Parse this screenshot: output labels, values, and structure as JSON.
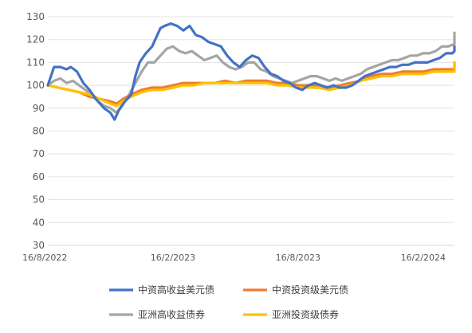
{
  "chart_data": {
    "type": "line",
    "title": "",
    "xlabel": "",
    "ylabel": "",
    "ylim": [
      30,
      130
    ],
    "yticks": [
      30,
      40,
      50,
      60,
      70,
      80,
      90,
      100,
      110,
      120,
      130
    ],
    "ytick_labels": [
      "30",
      "40",
      "50",
      "60",
      "70",
      "80",
      "90",
      "100",
      "110",
      "120",
      "130"
    ],
    "x_range": [
      0,
      19.5
    ],
    "xtick_positions": [
      0,
      6,
      12,
      18
    ],
    "xtick_labels": [
      "16/8/2022",
      "16/2/2023",
      "16/8/2023",
      "16/2/2024"
    ],
    "grid": "horizontal",
    "legend_position": "bottom",
    "series": [
      {
        "name": "中资高收益美元债",
        "color": "#4472C4",
        "points": [
          [
            0,
            100
          ],
          [
            0.15,
            104
          ],
          [
            0.3,
            108
          ],
          [
            0.6,
            108
          ],
          [
            0.9,
            107
          ],
          [
            1.1,
            108
          ],
          [
            1.4,
            106
          ],
          [
            1.7,
            101
          ],
          [
            2.0,
            98
          ],
          [
            2.3,
            94
          ],
          [
            2.7,
            90
          ],
          [
            3.0,
            88
          ],
          [
            3.2,
            85
          ],
          [
            3.4,
            89
          ],
          [
            3.7,
            93
          ],
          [
            4.0,
            96
          ],
          [
            4.2,
            104
          ],
          [
            4.4,
            110
          ],
          [
            4.7,
            114
          ],
          [
            5.0,
            117
          ],
          [
            5.2,
            121
          ],
          [
            5.4,
            125
          ],
          [
            5.6,
            126
          ],
          [
            5.9,
            127
          ],
          [
            6.2,
            126
          ],
          [
            6.5,
            124
          ],
          [
            6.8,
            126
          ],
          [
            7.1,
            122
          ],
          [
            7.4,
            121
          ],
          [
            7.7,
            119
          ],
          [
            8.0,
            118
          ],
          [
            8.3,
            117
          ],
          [
            8.6,
            113
          ],
          [
            8.9,
            110
          ],
          [
            9.2,
            108
          ],
          [
            9.5,
            111
          ],
          [
            9.8,
            113
          ],
          [
            10.1,
            112
          ],
          [
            10.4,
            108
          ],
          [
            10.7,
            105
          ],
          [
            11.0,
            104
          ],
          [
            11.3,
            102
          ],
          [
            11.6,
            101
          ],
          [
            11.9,
            99
          ],
          [
            12.2,
            98
          ],
          [
            12.5,
            100
          ],
          [
            12.8,
            101
          ],
          [
            13.1,
            100
          ],
          [
            13.4,
            99
          ],
          [
            13.7,
            100
          ],
          [
            14.0,
            99
          ],
          [
            14.3,
            99
          ],
          [
            14.6,
            100
          ],
          [
            14.9,
            102
          ],
          [
            15.2,
            104
          ],
          [
            15.5,
            105
          ],
          [
            15.8,
            106
          ],
          [
            16.1,
            107
          ],
          [
            16.4,
            108
          ],
          [
            16.7,
            108
          ],
          [
            17.0,
            109
          ],
          [
            17.3,
            109
          ],
          [
            17.6,
            110
          ],
          [
            17.9,
            110
          ],
          [
            18.2,
            110
          ],
          [
            18.5,
            111
          ],
          [
            18.8,
            112
          ],
          [
            19.1,
            114
          ],
          [
            19.4,
            114
          ],
          [
            19.7,
            115
          ],
          [
            20.0,
            115
          ],
          [
            20.3,
            116
          ],
          [
            20.6,
            116
          ],
          [
            20.9,
            117
          ],
          [
            21.2,
            117
          ],
          [
            21.5,
            117
          ]
        ]
      },
      {
        "name": "中资投资级美元债",
        "color": "#ED7D31",
        "points": [
          [
            0,
            100
          ],
          [
            0.5,
            99
          ],
          [
            1.0,
            98
          ],
          [
            1.5,
            97
          ],
          [
            2.0,
            95
          ],
          [
            2.5,
            94
          ],
          [
            3.0,
            93
          ],
          [
            3.3,
            92
          ],
          [
            3.6,
            94
          ],
          [
            4.0,
            96
          ],
          [
            4.5,
            98
          ],
          [
            5.0,
            99
          ],
          [
            5.5,
            99
          ],
          [
            6.0,
            100
          ],
          [
            6.5,
            101
          ],
          [
            7.0,
            101
          ],
          [
            7.5,
            101
          ],
          [
            8.0,
            101
          ],
          [
            8.5,
            102
          ],
          [
            9.0,
            101
          ],
          [
            9.5,
            102
          ],
          [
            10.0,
            102
          ],
          [
            10.5,
            102
          ],
          [
            11.0,
            101
          ],
          [
            11.5,
            101
          ],
          [
            12.0,
            100
          ],
          [
            12.5,
            100
          ],
          [
            13.0,
            100
          ],
          [
            13.5,
            99
          ],
          [
            14.0,
            100
          ],
          [
            14.5,
            101
          ],
          [
            15.0,
            102
          ],
          [
            15.5,
            104
          ],
          [
            16.0,
            105
          ],
          [
            16.5,
            105
          ],
          [
            17.0,
            106
          ],
          [
            17.5,
            106
          ],
          [
            18.0,
            106
          ],
          [
            18.5,
            107
          ],
          [
            19.0,
            107
          ],
          [
            19.5,
            107
          ],
          [
            20.0,
            108
          ],
          [
            20.5,
            109
          ],
          [
            21.0,
            110
          ],
          [
            21.5,
            110
          ]
        ]
      },
      {
        "name": "亚洲高收益债券",
        "color": "#A5A5A5",
        "points": [
          [
            0,
            100
          ],
          [
            0.3,
            102
          ],
          [
            0.6,
            103
          ],
          [
            0.9,
            101
          ],
          [
            1.2,
            102
          ],
          [
            1.5,
            100
          ],
          [
            1.8,
            98
          ],
          [
            2.1,
            96
          ],
          [
            2.4,
            93
          ],
          [
            2.7,
            91
          ],
          [
            3.0,
            90
          ],
          [
            3.3,
            88
          ],
          [
            3.6,
            92
          ],
          [
            3.9,
            96
          ],
          [
            4.2,
            101
          ],
          [
            4.5,
            106
          ],
          [
            4.8,
            110
          ],
          [
            5.1,
            110
          ],
          [
            5.4,
            113
          ],
          [
            5.7,
            116
          ],
          [
            6.0,
            117
          ],
          [
            6.3,
            115
          ],
          [
            6.6,
            114
          ],
          [
            6.9,
            115
          ],
          [
            7.2,
            113
          ],
          [
            7.5,
            111
          ],
          [
            7.8,
            112
          ],
          [
            8.1,
            113
          ],
          [
            8.4,
            110
          ],
          [
            8.7,
            108
          ],
          [
            9.0,
            107
          ],
          [
            9.3,
            108
          ],
          [
            9.6,
            110
          ],
          [
            9.9,
            110
          ],
          [
            10.2,
            107
          ],
          [
            10.5,
            106
          ],
          [
            10.8,
            104
          ],
          [
            11.1,
            103
          ],
          [
            11.4,
            102
          ],
          [
            11.7,
            101
          ],
          [
            12.0,
            102
          ],
          [
            12.3,
            103
          ],
          [
            12.6,
            104
          ],
          [
            12.9,
            104
          ],
          [
            13.2,
            103
          ],
          [
            13.5,
            102
          ],
          [
            13.8,
            103
          ],
          [
            14.1,
            102
          ],
          [
            14.4,
            103
          ],
          [
            14.7,
            104
          ],
          [
            15.0,
            105
          ],
          [
            15.3,
            107
          ],
          [
            15.6,
            108
          ],
          [
            15.9,
            109
          ],
          [
            16.2,
            110
          ],
          [
            16.5,
            111
          ],
          [
            16.8,
            111
          ],
          [
            17.1,
            112
          ],
          [
            17.4,
            113
          ],
          [
            17.7,
            113
          ],
          [
            18.0,
            114
          ],
          [
            18.3,
            114
          ],
          [
            18.6,
            115
          ],
          [
            18.9,
            117
          ],
          [
            19.2,
            117
          ],
          [
            19.5,
            118
          ],
          [
            19.8,
            119
          ],
          [
            20.1,
            120
          ],
          [
            20.4,
            120
          ],
          [
            20.7,
            121
          ],
          [
            21.0,
            122
          ],
          [
            21.3,
            123
          ],
          [
            21.5,
            122
          ]
        ]
      },
      {
        "name": "亚洲投资级债券",
        "color": "#FFC000",
        "points": [
          [
            0,
            100
          ],
          [
            0.5,
            99
          ],
          [
            1.0,
            98
          ],
          [
            1.5,
            97
          ],
          [
            2.0,
            96
          ],
          [
            2.5,
            94
          ],
          [
            3.0,
            92
          ],
          [
            3.3,
            91
          ],
          [
            3.6,
            93
          ],
          [
            4.0,
            95
          ],
          [
            4.5,
            97
          ],
          [
            5.0,
            98
          ],
          [
            5.5,
            98
          ],
          [
            6.0,
            99
          ],
          [
            6.5,
            100
          ],
          [
            7.0,
            100
          ],
          [
            7.5,
            101
          ],
          [
            8.0,
            101
          ],
          [
            8.5,
            101
          ],
          [
            9.0,
            101
          ],
          [
            9.5,
            101
          ],
          [
            10.0,
            101
          ],
          [
            10.5,
            101
          ],
          [
            11.0,
            100
          ],
          [
            11.5,
            100
          ],
          [
            12.0,
            99
          ],
          [
            12.5,
            99
          ],
          [
            13.0,
            99
          ],
          [
            13.5,
            98
          ],
          [
            14.0,
            99
          ],
          [
            14.5,
            100
          ],
          [
            15.0,
            102
          ],
          [
            15.5,
            103
          ],
          [
            16.0,
            104
          ],
          [
            16.5,
            104
          ],
          [
            17.0,
            105
          ],
          [
            17.5,
            105
          ],
          [
            18.0,
            105
          ],
          [
            18.5,
            106
          ],
          [
            19.0,
            106
          ],
          [
            19.5,
            106
          ],
          [
            20.0,
            107
          ],
          [
            20.5,
            108
          ],
          [
            21.0,
            109
          ],
          [
            21.5,
            110
          ]
        ]
      }
    ]
  }
}
